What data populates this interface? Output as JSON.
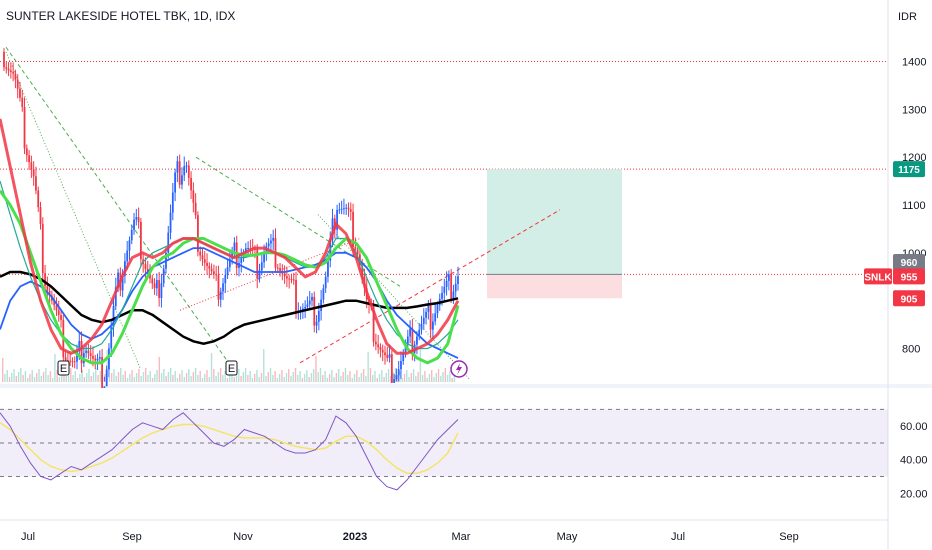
{
  "header": {
    "title": "SUNTER LAKESIDE HOTEL TBK, 1D, IDX",
    "currency": "IDR"
  },
  "colors": {
    "up": "#2962ff",
    "down": "#f23645",
    "ema_fast": "#f23645",
    "ema_mid": "#22ab94",
    "ema_green": "#4caf50",
    "sma_blue": "#2962ff",
    "sma_black": "#000000",
    "rsi_line": "#7e57c2",
    "rsi_ma": "#f5e46b",
    "target_zone": "#d1ece6",
    "stop_zone": "#fcdde0",
    "tag_green": "#089981",
    "tag_red": "#f23645",
    "tag_gray": "#787b86"
  },
  "chart_data": [
    {
      "type": "candlestick",
      "title": "SUNTER LAKESIDE HOTEL TBK, 1D, IDX",
      "ylabel": "IDR",
      "x_tick_labels": [
        "Jul",
        "Sep",
        "Nov",
        "2023",
        "Mar",
        "May",
        "Jul",
        "Sep"
      ],
      "y_tick_labels": [
        "800",
        "1000",
        "1100",
        "1200",
        "1300",
        "1400"
      ],
      "ylim": [
        730,
        1470
      ],
      "price_tags": [
        {
          "label": "1175",
          "value": 1175,
          "color": "green"
        },
        {
          "label": "960",
          "value": 960,
          "color": "gray"
        },
        {
          "label": "955",
          "value": 955,
          "color": "red",
          "symbol": "SNLK"
        },
        {
          "label": "905",
          "value": 905,
          "color": "red"
        }
      ],
      "horizontal_levels": [
        1400,
        1175,
        955
      ],
      "event_markers": [
        "E",
        "E"
      ],
      "position": {
        "entry": 955,
        "target": 1175,
        "stop": 905
      },
      "close_path": [
        1420,
        1370,
        1250,
        1150,
        960,
        880,
        800,
        760,
        820,
        760,
        740,
        900,
        1000,
        1060,
        980,
        900,
        1000,
        1150,
        1200,
        1050,
        980,
        920,
        960,
        1000,
        1010,
        970,
        1010,
        1000,
        940,
        900,
        880,
        880,
        950,
        1110,
        1080,
        1020,
        880,
        820,
        760,
        760,
        800,
        840,
        860,
        900,
        920,
        955
      ],
      "ema_fast": [
        1280,
        1180,
        1080,
        980,
        900,
        840,
        800,
        790,
        800,
        820,
        850,
        900,
        950,
        990,
        1000,
        990,
        1000,
        1020,
        1030,
        1030,
        1020,
        1010,
        1000,
        990,
        1000,
        1010,
        1010,
        1000,
        990,
        970,
        950,
        960,
        1000,
        1060,
        1040,
        990,
        920,
        860,
        810,
        790,
        790,
        800,
        810,
        830,
        860,
        900
      ],
      "ema_mid": [
        1150,
        1080,
        1010,
        950,
        900,
        860,
        830,
        810,
        800,
        800,
        810,
        840,
        880,
        930,
        980,
        1000,
        1010,
        1020,
        1030,
        1030,
        1020,
        1010,
        1000,
        990,
        990,
        995,
        1000,
        1000,
        990,
        980,
        970,
        970,
        990,
        1030,
        1030,
        1000,
        950,
        900,
        860,
        830,
        810,
        800,
        800,
        810,
        830,
        860
      ],
      "ema_green": [
        1130,
        1100,
        1060,
        1000,
        940,
        880,
        830,
        800,
        780,
        770,
        770,
        790,
        830,
        880,
        930,
        970,
        990,
        1000,
        1020,
        1030,
        1030,
        1020,
        1010,
        1000,
        995,
        995,
        1000,
        1000,
        995,
        985,
        975,
        970,
        980,
        1010,
        1030,
        1020,
        990,
        940,
        890,
        840,
        800,
        780,
        770,
        780,
        810,
        890
      ],
      "sma_blue": [
        840,
        900,
        930,
        940,
        930,
        910,
        880,
        850,
        830,
        820,
        830,
        850,
        880,
        920,
        950,
        970,
        980,
        990,
        1000,
        1010,
        1010,
        1000,
        990,
        980,
        970,
        960,
        960,
        960,
        960,
        965,
        970,
        975,
        985,
        1000,
        1000,
        990,
        970,
        940,
        900,
        870,
        850,
        830,
        810,
        800,
        790,
        780
      ],
      "sma_black": [
        950,
        960,
        960,
        955,
        945,
        930,
        910,
        890,
        870,
        860,
        855,
        860,
        870,
        880,
        880,
        870,
        855,
        840,
        825,
        815,
        810,
        815,
        825,
        840,
        850,
        855,
        860,
        865,
        870,
        875,
        880,
        885,
        890,
        895,
        900,
        900,
        895,
        890,
        885,
        885,
        885,
        888,
        892,
        895,
        900,
        905
      ]
    },
    {
      "type": "line",
      "title": "",
      "y_tick_labels": [
        "20.00",
        "40.00",
        "60.00"
      ],
      "ylim": [
        16,
        78
      ],
      "band": [
        30,
        70
      ],
      "mid_line": 50,
      "series": [
        {
          "role": "rsi",
          "values": [
            68,
            60,
            48,
            38,
            30,
            28,
            32,
            36,
            34,
            38,
            42,
            46,
            52,
            58,
            62,
            60,
            58,
            64,
            68,
            62,
            56,
            50,
            48,
            52,
            58,
            56,
            54,
            50,
            46,
            44,
            44,
            46,
            52,
            66,
            62,
            54,
            42,
            30,
            24,
            22,
            28,
            36,
            44,
            52,
            58,
            64
          ]
        },
        {
          "role": "rsi_ma",
          "values": [
            62,
            58,
            52,
            46,
            40,
            36,
            34,
            33,
            34,
            36,
            38,
            41,
            45,
            49,
            53,
            56,
            58,
            60,
            61,
            61,
            60,
            58,
            56,
            54,
            53,
            53,
            53,
            52,
            50,
            48,
            47,
            46,
            47,
            51,
            54,
            54,
            51,
            46,
            40,
            35,
            32,
            32,
            34,
            38,
            44,
            56
          ]
        }
      ]
    }
  ]
}
